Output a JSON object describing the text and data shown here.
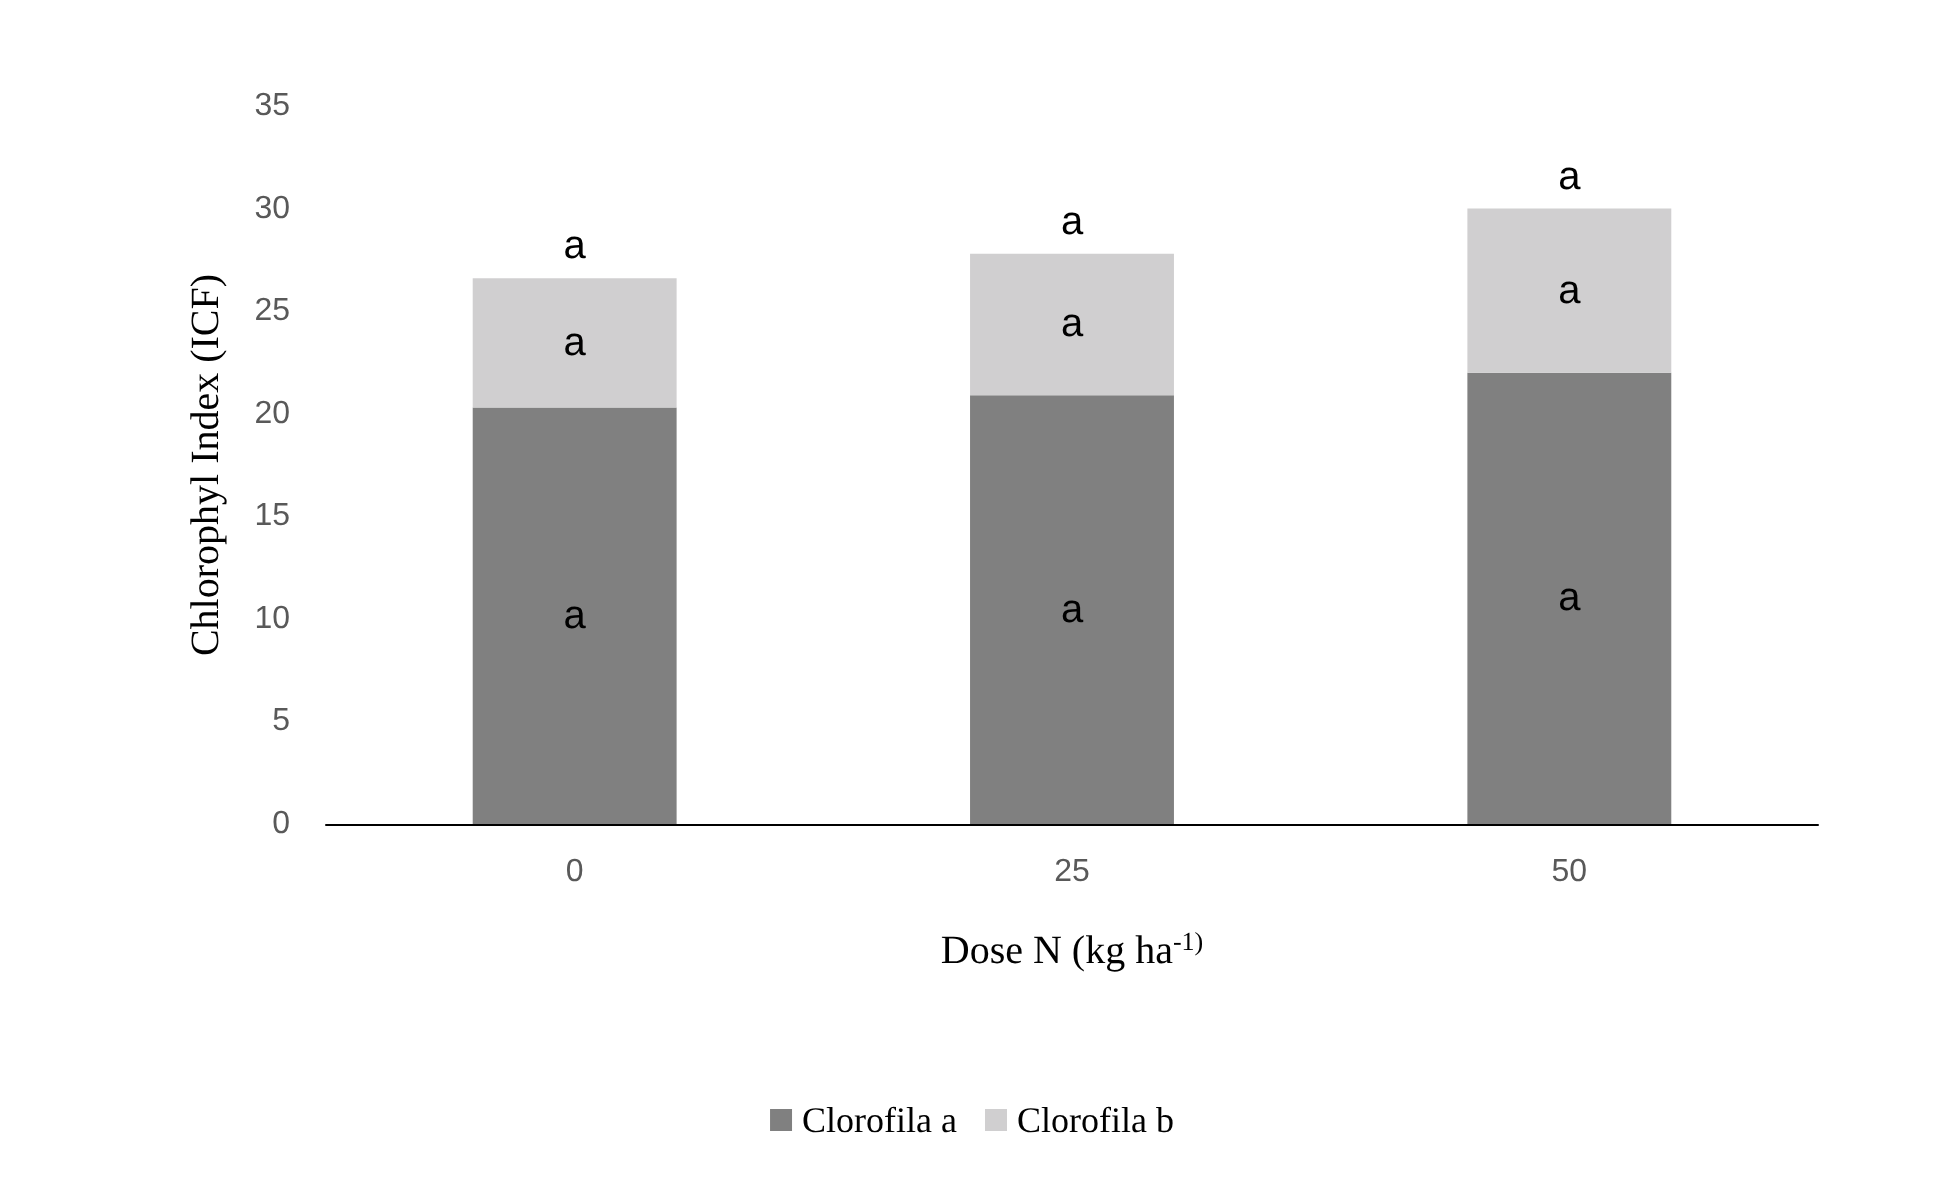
{
  "chart_data": {
    "type": "bar",
    "stacked": true,
    "xlabel": "Dose N (kg ha$^{-1)}$",
    "ylabel": "Chlorophyl Index (ICF)",
    "categories": [
      "0",
      "25",
      "50"
    ],
    "series": [
      {
        "name": "Clorofila a",
        "color": "#808080",
        "values": [
          20.3,
          20.9,
          22.0
        ],
        "value_labels": [
          "a",
          "a",
          "a"
        ]
      },
      {
        "name": "Clorofila b",
        "color": "#d0cfd0",
        "values": [
          6.3,
          6.9,
          8.0
        ],
        "value_labels": [
          "a",
          "a",
          "a"
        ]
      }
    ],
    "ylim": [
      0,
      35
    ],
    "yticks": [
      0,
      5,
      10,
      15,
      20,
      25,
      30,
      35
    ],
    "grid": false,
    "legend": "bottom",
    "annotations": [
      {
        "text": "a",
        "x": "0",
        "y": 26.6
      },
      {
        "text": "a",
        "x": "25",
        "y": 27.8
      },
      {
        "text": "a",
        "x": "50",
        "y": 30.0
      }
    ]
  }
}
